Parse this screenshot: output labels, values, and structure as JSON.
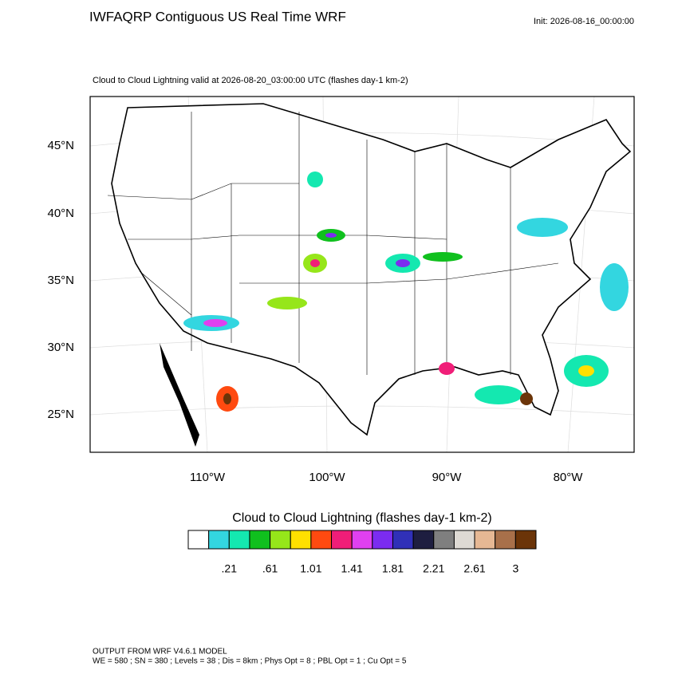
{
  "header": {
    "title": "IWFAQRP Contiguous US Real Time WRF",
    "init": "Init: 2026-08-16_00:00:00"
  },
  "map": {
    "subtitle": "Cloud to Cloud Lightning valid at 2026-08-20_03:00:00 UTC   (flashes day-1 km-2)",
    "lat_labels": [
      "45°N",
      "40°N",
      "35°N",
      "30°N",
      "25°N"
    ],
    "lon_labels": [
      "110°W",
      "100°W",
      "90°W",
      "80°W"
    ]
  },
  "colorbar": {
    "title": "Cloud to Cloud Lightning  (flashes day-1 km-2)",
    "colors": [
      "#ffffff",
      "#33d6e0",
      "#14e8b0",
      "#10c01e",
      "#96e61a",
      "#ffe000",
      "#ff4a10",
      "#f01e78",
      "#e040f0",
      "#7b2cf0",
      "#3030b8",
      "#1e1e40",
      "#7f7f7f",
      "#dedad4",
      "#e6b894",
      "#a8704a",
      "#6b3408"
    ],
    "labels": [
      ".21",
      ".61",
      "1.01",
      "1.41",
      "1.81",
      "2.21",
      "2.61",
      "3"
    ]
  },
  "footer": {
    "line1": "OUTPUT FROM WRF V4.6.1 MODEL",
    "line2": "WE = 580 ; SN = 380 ; Levels = 38 ; Dis = 8km ; Phys Opt = 8 ; PBL Opt = 1 ; Cu Opt = 5"
  }
}
